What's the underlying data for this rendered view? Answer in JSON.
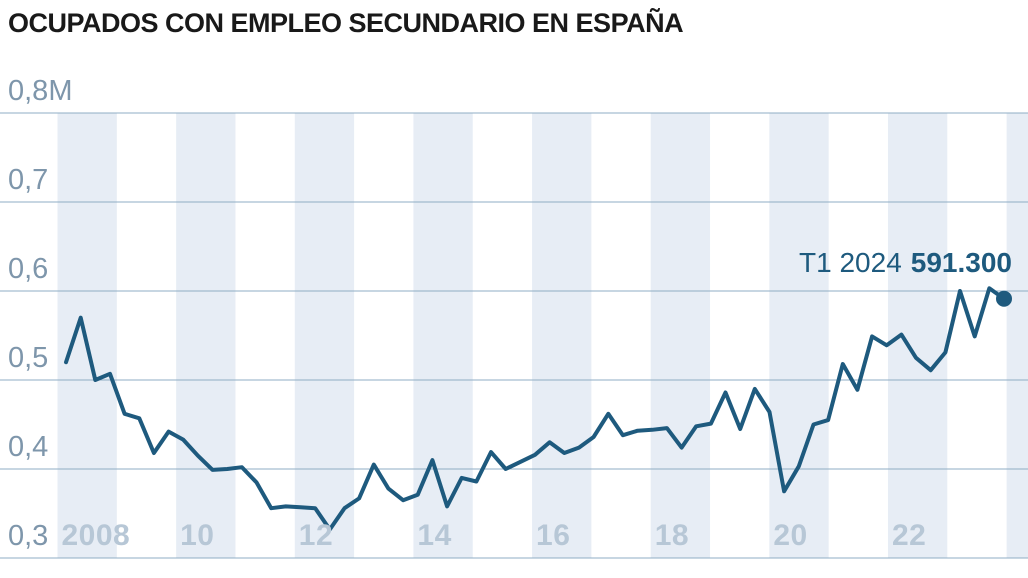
{
  "title": "OCUPADOS CON EMPLEO SECUNDARIO EN ESPAÑA",
  "annotation": {
    "period": "T1 2024",
    "value": "591.300"
  },
  "colors": {
    "line": "#1e5a7e",
    "end_dot": "#1e5a7e",
    "gridline": "#8fadc4",
    "year_band": "#e7edf5",
    "y_tick_label": "#7e96ab",
    "x_tick_label": "#b7c7d6",
    "title": "#191919",
    "annotation": "#1e5a7e",
    "background": "#ffffff"
  },
  "chart_data": {
    "type": "line",
    "title": "OCUPADOS CON EMPLEO SECUNDARIO EN ESPAÑA",
    "unit": "millions of people",
    "frequency": "quarterly",
    "x_start": "T1 2008",
    "x_end": "T1 2024",
    "ylim": [
      0.3,
      0.8
    ],
    "grid": "horizontal",
    "year_bands_even_years": [
      2008,
      2010,
      2012,
      2014,
      2016,
      2018,
      2020,
      2022,
      2024
    ],
    "y_ticks": [
      {
        "label": "0,8M",
        "value": 0.8
      },
      {
        "label": "0,7",
        "value": 0.7
      },
      {
        "label": "0,6",
        "value": 0.6
      },
      {
        "label": "0,5",
        "value": 0.5
      },
      {
        "label": "0,4",
        "value": 0.4
      },
      {
        "label": "0,3",
        "value": 0.3
      }
    ],
    "x_ticks": [
      {
        "label": "2008",
        "year": 2008
      },
      {
        "label": "10",
        "year": 2010
      },
      {
        "label": "12",
        "year": 2012
      },
      {
        "label": "14",
        "year": 2014
      },
      {
        "label": "16",
        "year": 2016
      },
      {
        "label": "18",
        "year": 2018
      },
      {
        "label": "20",
        "year": 2020
      },
      {
        "label": "22",
        "year": 2022
      }
    ],
    "categories": [
      "T1 2008",
      "T2 2008",
      "T3 2008",
      "T4 2008",
      "T1 2009",
      "T2 2009",
      "T3 2009",
      "T4 2009",
      "T1 2010",
      "T2 2010",
      "T3 2010",
      "T4 2010",
      "T1 2011",
      "T2 2011",
      "T3 2011",
      "T4 2011",
      "T1 2012",
      "T2 2012",
      "T3 2012",
      "T4 2012",
      "T1 2013",
      "T2 2013",
      "T3 2013",
      "T4 2013",
      "T1 2014",
      "T2 2014",
      "T3 2014",
      "T4 2014",
      "T1 2015",
      "T2 2015",
      "T3 2015",
      "T4 2015",
      "T1 2016",
      "T2 2016",
      "T3 2016",
      "T4 2016",
      "T1 2017",
      "T2 2017",
      "T3 2017",
      "T4 2017",
      "T1 2018",
      "T2 2018",
      "T3 2018",
      "T4 2018",
      "T1 2019",
      "T2 2019",
      "T3 2019",
      "T4 2019",
      "T1 2020",
      "T2 2020",
      "T3 2020",
      "T4 2020",
      "T1 2021",
      "T2 2021",
      "T3 2021",
      "T4 2021",
      "T1 2022",
      "T2 2022",
      "T3 2022",
      "T4 2022",
      "T1 2023",
      "T2 2023",
      "T3 2023",
      "T4 2023",
      "T1 2024"
    ],
    "series": [
      {
        "name": "Ocupados con empleo secundario (millones)",
        "values": [
          0.52,
          0.57,
          0.5,
          0.507,
          0.462,
          0.457,
          0.418,
          0.442,
          0.433,
          0.415,
          0.399,
          0.4,
          0.402,
          0.385,
          0.356,
          0.358,
          0.357,
          0.356,
          0.332,
          0.356,
          0.367,
          0.405,
          0.378,
          0.365,
          0.371,
          0.41,
          0.358,
          0.39,
          0.386,
          0.419,
          0.4,
          0.408,
          0.416,
          0.43,
          0.418,
          0.424,
          0.436,
          0.462,
          0.438,
          0.443,
          0.444,
          0.446,
          0.424,
          0.448,
          0.451,
          0.486,
          0.445,
          0.49,
          0.464,
          0.375,
          0.403,
          0.45,
          0.455,
          0.518,
          0.489,
          0.549,
          0.539,
          0.551,
          0.525,
          0.511,
          0.531,
          0.6,
          0.549,
          0.603,
          0.5913
        ]
      }
    ],
    "last_point": {
      "label": "T1 2024",
      "value_persons": 591300,
      "value_millions": 0.5913
    },
    "legend": "none"
  }
}
